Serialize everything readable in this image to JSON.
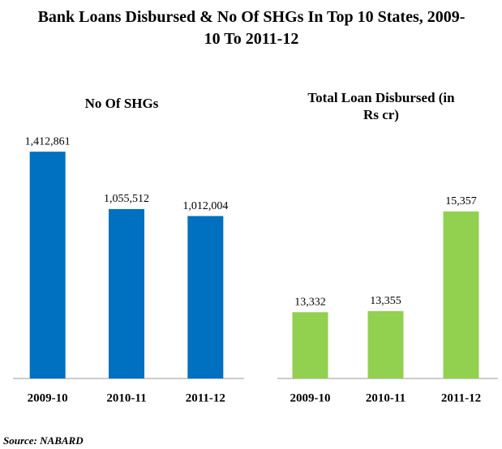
{
  "title": "Bank Loans Disbursed & No Of SHGs In Top 10 States, 2009-10 To 2011-12",
  "source": "Source: NABARD",
  "chart_data": [
    {
      "type": "bar",
      "title": "No Of SHGs",
      "categories": [
        "2009-10",
        "2010-11",
        "2011-12"
      ],
      "values": [
        1412861,
        1055512,
        1012004
      ],
      "value_labels": [
        "1,412,861",
        "1,055,512",
        "1,012,004"
      ],
      "color": "#0070c0",
      "ylim": [
        0,
        1550000
      ]
    },
    {
      "type": "bar",
      "title": "Total Loan Disbursed (in Rs cr)",
      "categories": [
        "2009-10",
        "2010-11",
        "2011-12"
      ],
      "values": [
        13332,
        13355,
        15357
      ],
      "value_labels": [
        "13,332",
        "13,355",
        "15,357"
      ],
      "color": "#92d050",
      "ylim": [
        12000,
        17000
      ]
    }
  ]
}
